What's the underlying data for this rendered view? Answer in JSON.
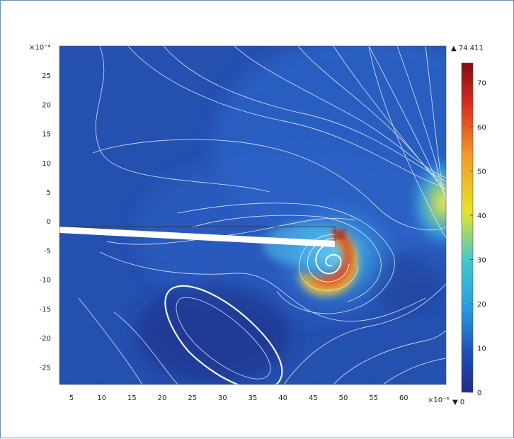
{
  "chart_data": {
    "type": "heatmap",
    "x_exponent_label": "×10⁻⁴",
    "y_exponent_label": "×10⁻⁴",
    "xlim": [
      3,
      67
    ],
    "ylim": [
      -28,
      30
    ],
    "x_ticks": [
      5,
      10,
      15,
      20,
      25,
      30,
      35,
      40,
      45,
      50,
      55,
      60
    ],
    "y_ticks": [
      25,
      20,
      15,
      10,
      5,
      0,
      -5,
      -10,
      -15,
      -20,
      -25
    ],
    "colorbar": {
      "min": 0,
      "max": 74.411,
      "max_label": "▲ 74.411",
      "min_label": "▼ 0",
      "ticks": [
        0,
        10,
        20,
        30,
        40,
        50,
        60,
        70
      ]
    },
    "field_peaks": [
      {
        "x": 49.5,
        "y": -5.5,
        "value": 74
      },
      {
        "x": 66,
        "y": 4.5,
        "value": 32
      }
    ],
    "plate": {
      "x_start": 3,
      "y_start": 0.2,
      "x_end": 50,
      "y_end": -2.5
    },
    "grid": false,
    "legend": "colorbar-right"
  }
}
